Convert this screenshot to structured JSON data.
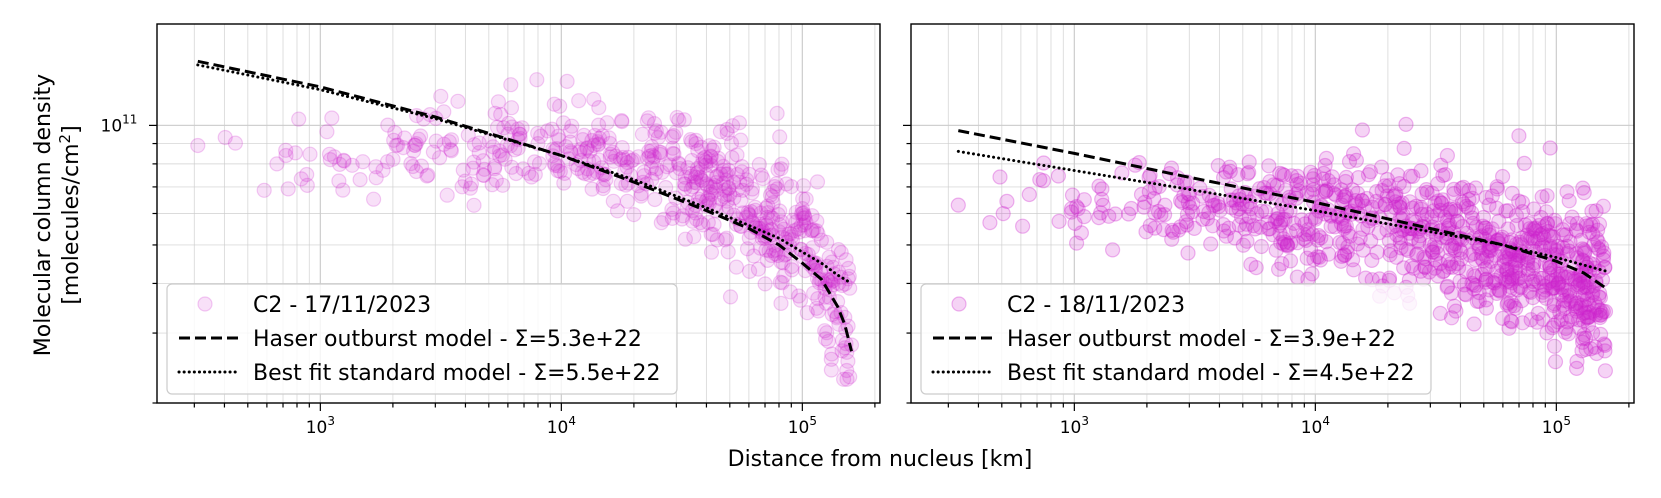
{
  "figure": {
    "xlabel": "Distance from nucleus [km]",
    "ylabel_line1": "Molecular column density",
    "ylabel_line2": "[molecules/cm",
    "ylabel_sup": "2",
    "ylabel_close": "]"
  },
  "colors": {
    "points": "#cc22cc",
    "model": "#000000",
    "grid": "#cccccc"
  },
  "chart_data": [
    {
      "type": "scatter",
      "xscale": "log",
      "yscale": "log",
      "xlim": [
        210,
        210000
      ],
      "ylim": [
        20000000000,
        180000000000
      ],
      "xticks": [
        {
          "base": "10",
          "exp": "3",
          "value": 1000
        },
        {
          "base": "10",
          "exp": "4",
          "value": 10000
        },
        {
          "base": "10",
          "exp": "5",
          "value": 100000
        }
      ],
      "yticks": [
        {
          "base": "10",
          "exp": "11",
          "value": 100000000000
        }
      ],
      "grid": true,
      "legend": "lower-left",
      "point_alpha": 0.14,
      "series": [
        {
          "name": "C2 - 17/11/2023",
          "kind": "scatter",
          "anchors": [
            [
              310,
              89000000000
            ],
            [
              720,
              84000000000
            ],
            [
              1100,
              82000000000
            ],
            [
              1500,
              81000000000
            ],
            [
              1900,
              81000000000
            ],
            [
              2500,
              90000000000
            ],
            [
              3500,
              92000000000
            ],
            [
              4300,
              78000000000
            ],
            [
              6000,
              95000000000
            ],
            [
              8000,
              90000000000
            ],
            [
              12000,
              87000000000
            ],
            [
              18000,
              83000000000
            ],
            [
              30000,
              76000000000
            ],
            [
              50000,
              67000000000
            ],
            [
              80000,
              54000000000
            ],
            [
              110000,
              45000000000
            ],
            [
              140000,
              36000000000
            ],
            [
              160000,
              28000000000
            ]
          ],
          "spread": 0.09,
          "n": 600,
          "seed": 7
        },
        {
          "name": "Haser outburst model - Σ=5.3e+22",
          "kind": "line",
          "dash": "dashed",
          "x": [
            310,
            1000,
            3000,
            10000,
            20000,
            40000,
            60000,
            80000,
            100000,
            120000,
            140000,
            150000,
            160000
          ],
          "y": [
            145000000000,
            125000000000,
            105000000000,
            84000000000,
            72000000000,
            61000000000,
            55000000000,
            50000000000,
            45000000000,
            41000000000,
            35000000000,
            31500000000,
            27000000000
          ]
        },
        {
          "name": "Best fit standard model - Σ=5.5e+22",
          "kind": "line",
          "dash": "dotted",
          "x": [
            310,
            1000,
            3000,
            10000,
            20000,
            40000,
            60000,
            80000,
            100000,
            120000,
            140000,
            160000
          ],
          "y": [
            142000000000,
            123000000000,
            104000000000,
            84000000000,
            73000000000,
            62000000000,
            56000000000,
            52000000000,
            48000000000,
            45000000000,
            42000000000,
            40000000000
          ]
        }
      ]
    },
    {
      "type": "scatter",
      "xscale": "log",
      "yscale": "log",
      "xlim": [
        210,
        210000
      ],
      "ylim": [
        20000000000,
        180000000000
      ],
      "xticks": [
        {
          "base": "10",
          "exp": "3",
          "value": 1000
        },
        {
          "base": "10",
          "exp": "4",
          "value": 10000
        },
        {
          "base": "10",
          "exp": "5",
          "value": 100000
        }
      ],
      "yticks": [
        {
          "base": "10",
          "exp": "11",
          "value": 100000000000
        }
      ],
      "grid": true,
      "legend": "lower-left",
      "point_alpha": 0.2,
      "series": [
        {
          "name": "C2 - 18/11/2023",
          "kind": "scatter",
          "anchors": [
            [
              330,
              63000000000
            ],
            [
              650,
              67000000000
            ],
            [
              1100,
              65000000000
            ],
            [
              1900,
              67000000000
            ],
            [
              2800,
              64000000000
            ],
            [
              4500,
              62000000000
            ],
            [
              7000,
              60000000000
            ],
            [
              10000,
              58000000000
            ],
            [
              15000,
              60000000000
            ],
            [
              25000,
              55000000000
            ],
            [
              40000,
              52000000000
            ],
            [
              60000,
              48000000000
            ],
            [
              90000,
              45000000000
            ],
            [
              120000,
              41000000000
            ],
            [
              150000,
              37000000000
            ],
            [
              160000,
              34000000000
            ]
          ],
          "spread": 0.1,
          "n": 900,
          "seed": 19
        },
        {
          "name": "Haser outburst model - Σ=3.9e+22",
          "kind": "line",
          "dash": "dashed",
          "x": [
            330,
            1000,
            3000,
            10000,
            30000,
            60000,
            100000,
            130000,
            160000
          ],
          "y": [
            97000000000,
            85000000000,
            74000000000,
            64000000000,
            55000000000,
            50000000000,
            45500000000,
            42500000000,
            39000000000
          ]
        },
        {
          "name": "Best fit standard model - Σ=4.5e+22",
          "kind": "line",
          "dash": "dotted",
          "x": [
            330,
            1000,
            3000,
            10000,
            30000,
            60000,
            100000,
            160000
          ],
          "y": [
            86000000000,
            77000000000,
            69000000000,
            61000000000,
            54000000000,
            50000000000,
            46500000000,
            43000000000
          ]
        }
      ]
    }
  ]
}
